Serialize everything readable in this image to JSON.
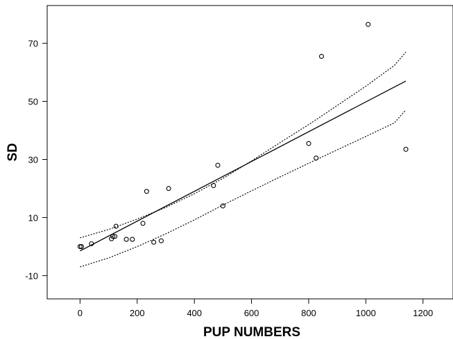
{
  "chart_data": {
    "type": "scatter",
    "xlabel": "PUP NUMBERS",
    "ylabel": "SD",
    "xlim": [
      -115,
      1305
    ],
    "ylim": [
      -18,
      83
    ],
    "x_ticks": [
      0,
      200,
      400,
      600,
      800,
      1000,
      1200
    ],
    "y_ticks": [
      -10,
      10,
      30,
      50,
      70
    ],
    "grid": false,
    "points": [
      {
        "x": 0,
        "y": 0
      },
      {
        "x": 5,
        "y": 0
      },
      {
        "x": 40,
        "y": 1
      },
      {
        "x": 110,
        "y": 2.7
      },
      {
        "x": 115,
        "y": 3.5
      },
      {
        "x": 122,
        "y": 3.5
      },
      {
        "x": 126,
        "y": 7
      },
      {
        "x": 162,
        "y": 2.5
      },
      {
        "x": 183,
        "y": 2.5
      },
      {
        "x": 220,
        "y": 8
      },
      {
        "x": 233,
        "y": 19
      },
      {
        "x": 258,
        "y": 1.5
      },
      {
        "x": 284,
        "y": 2
      },
      {
        "x": 310,
        "y": 20
      },
      {
        "x": 467,
        "y": 21
      },
      {
        "x": 482,
        "y": 28
      },
      {
        "x": 500,
        "y": 14
      },
      {
        "x": 800,
        "y": 35.5
      },
      {
        "x": 826,
        "y": 30.5
      },
      {
        "x": 845,
        "y": 65.5
      },
      {
        "x": 1008,
        "y": 76.5
      },
      {
        "x": 1140,
        "y": 33.5
      }
    ],
    "fit_line": {
      "x": [
        0,
        1140
      ],
      "y": [
        -1.5,
        57
      ]
    },
    "confidence_band": {
      "x": [
        0,
        100,
        200,
        300,
        400,
        500,
        600,
        700,
        800,
        900,
        1000,
        1100,
        1140
      ],
      "upper": [
        3,
        5.9,
        9.5,
        13.5,
        18.2,
        23.5,
        29.5,
        35.8,
        42,
        48.6,
        55.2,
        62.4,
        67
      ],
      "lower": [
        -7,
        -3.9,
        0,
        4.4,
        9.2,
        14.3,
        19.2,
        24,
        28.7,
        33.3,
        37.9,
        42.6,
        47
      ]
    }
  }
}
